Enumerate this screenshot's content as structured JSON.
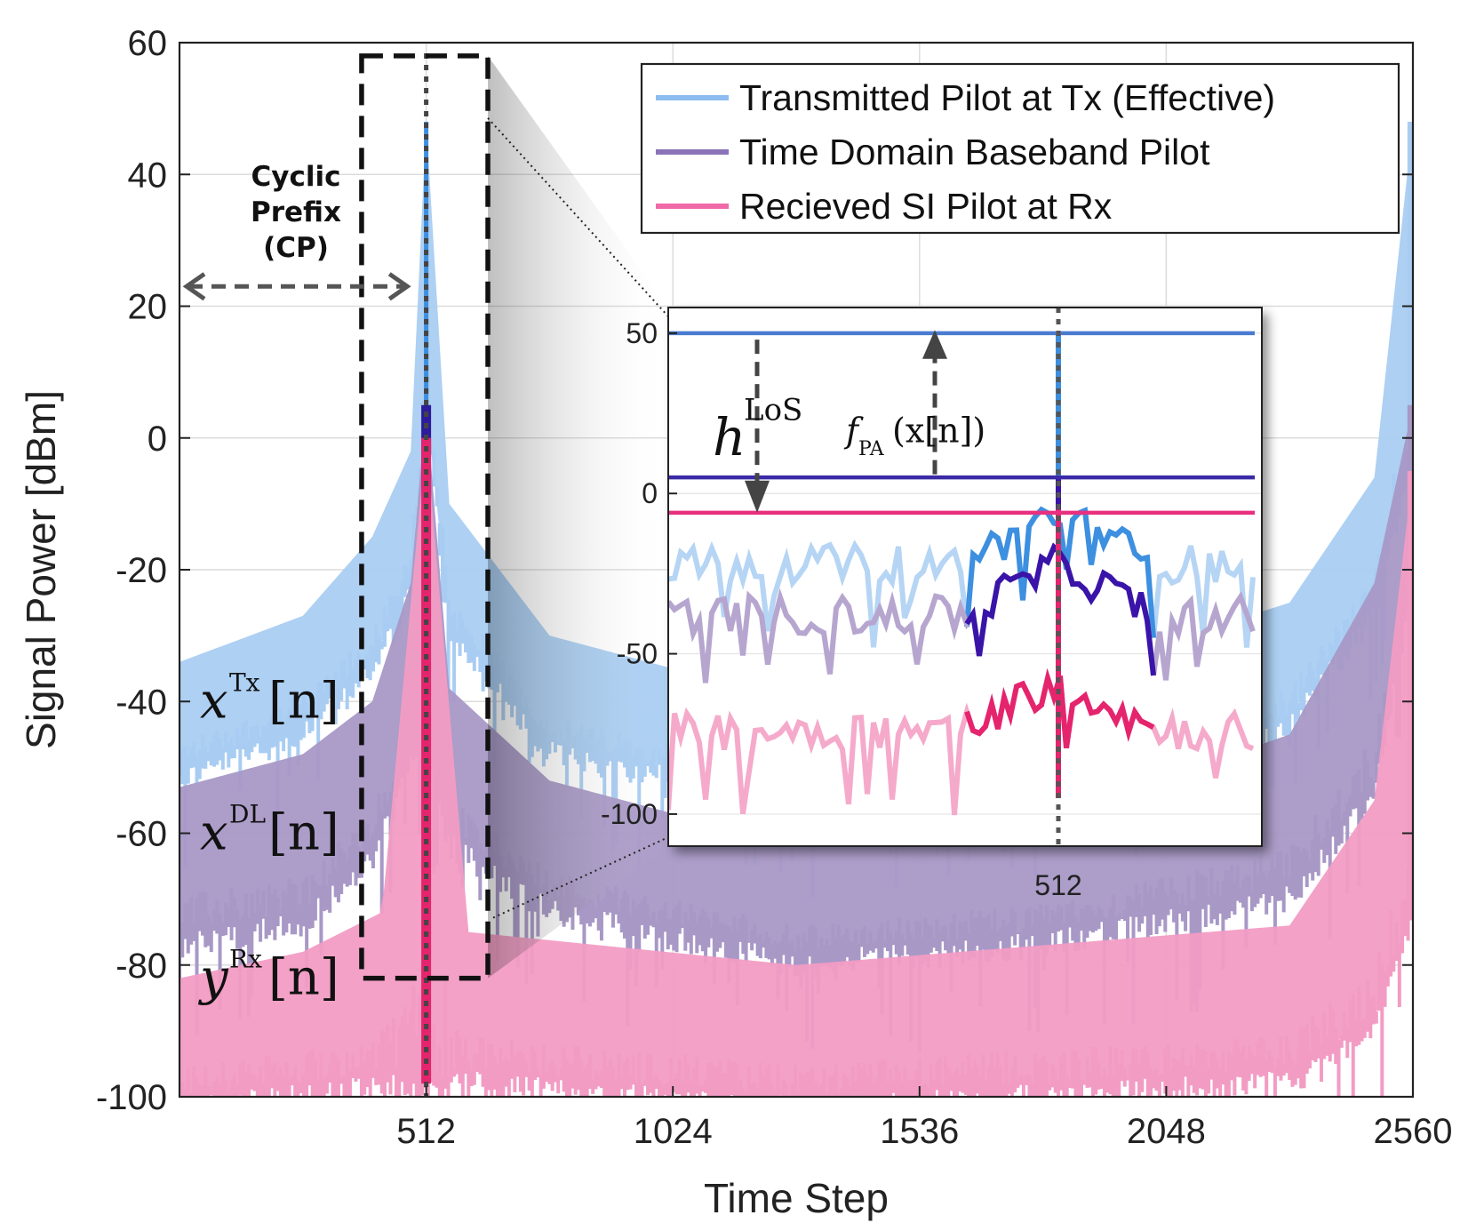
{
  "chart_data": {
    "type": "line",
    "title": "",
    "xlabel": "Time Step",
    "ylabel": "Signal Power [dBm]",
    "xlim": [
      0,
      2560
    ],
    "ylim": [
      -100,
      60
    ],
    "xticks": [
      512,
      1024,
      1536,
      2048,
      2560
    ],
    "xtick_labels": [
      "512",
      "1024",
      "1536",
      "2048",
      "2560"
    ],
    "yticks": [
      60,
      40,
      20,
      0,
      -20,
      -40,
      -60,
      -80,
      -100
    ],
    "ytick_labels": [
      "60",
      "40",
      "20",
      "0",
      "-20",
      "-40",
      "-60",
      "-80",
      "-100"
    ],
    "grid": true,
    "legend_position": "top-right",
    "series": [
      {
        "name": "Transmitted Pilot at Tx (Effective)",
        "color": "#a9cdf2",
        "peak_color": "#3d8fe0",
        "envelope": [
          {
            "x": 0,
            "lo": -50,
            "hi": -34
          },
          {
            "x": 256,
            "lo": -43,
            "hi": -27
          },
          {
            "x": 400,
            "lo": -34,
            "hi": -15
          },
          {
            "x": 480,
            "lo": -22,
            "hi": -2
          },
          {
            "x": 512,
            "lo": 5,
            "hi": 48
          },
          {
            "x": 560,
            "lo": -28,
            "hi": -10
          },
          {
            "x": 768,
            "lo": -46,
            "hi": -30
          },
          {
            "x": 1280,
            "lo": -54,
            "hi": -40
          },
          {
            "x": 1792,
            "lo": -51,
            "hi": -37
          },
          {
            "x": 2304,
            "lo": -42,
            "hi": -25
          },
          {
            "x": 2480,
            "lo": -25,
            "hi": -6
          },
          {
            "x": 2560,
            "lo": -2,
            "hi": 48
          }
        ]
      },
      {
        "name": "Time Domain Baseband Pilot",
        "color": "#a898c6",
        "peak_color": "#2e1a9c",
        "envelope": [
          {
            "x": 0,
            "lo": -75,
            "hi": -53
          },
          {
            "x": 256,
            "lo": -72,
            "hi": -48
          },
          {
            "x": 400,
            "lo": -62,
            "hi": -40
          },
          {
            "x": 480,
            "lo": -48,
            "hi": -22
          },
          {
            "x": 512,
            "lo": -46,
            "hi": 5
          },
          {
            "x": 560,
            "lo": -60,
            "hi": -38
          },
          {
            "x": 768,
            "lo": -70,
            "hi": -52
          },
          {
            "x": 1280,
            "lo": -78,
            "hi": -62
          },
          {
            "x": 1792,
            "lo": -75,
            "hi": -58
          },
          {
            "x": 2304,
            "lo": -68,
            "hi": -45
          },
          {
            "x": 2480,
            "lo": -52,
            "hi": -22
          },
          {
            "x": 2560,
            "lo": -20,
            "hi": 5
          }
        ]
      },
      {
        "name": "Recieved SI Pilot at Rx",
        "color": "#f29cc4",
        "peak_color": "#e5246e",
        "envelope": [
          {
            "x": 0,
            "lo": -100,
            "hi": -82
          },
          {
            "x": 256,
            "lo": -98,
            "hi": -78
          },
          {
            "x": 420,
            "lo": -96,
            "hi": -72
          },
          {
            "x": 512,
            "lo": -98,
            "hi": 0
          },
          {
            "x": 600,
            "lo": -96,
            "hi": -75
          },
          {
            "x": 1280,
            "lo": -100,
            "hi": -80
          },
          {
            "x": 2304,
            "lo": -96,
            "hi": -74
          },
          {
            "x": 2480,
            "lo": -88,
            "hi": -55
          },
          {
            "x": 2560,
            "lo": -72,
            "hi": -5
          }
        ]
      }
    ],
    "annotations": {
      "cp_label": [
        "Cyclic",
        "Prefix",
        "(CP)"
      ],
      "cp_arrow": {
        "x_from": 0,
        "x_to": 480,
        "y": 23
      },
      "cp_box": {
        "x_from": 378,
        "x_to": 640,
        "y_from": -82,
        "y_to": 58
      },
      "peak_marker_x": 512,
      "trace_labels": [
        {
          "base": "x",
          "sup": "Tx",
          "arg": "[n]",
          "y": -40
        },
        {
          "base": "x",
          "sup": "DL",
          "arg": "[n]",
          "y": -60
        },
        {
          "base": "y",
          "sup": "Rx",
          "arg": "[n]",
          "y": -82
        }
      ]
    },
    "inset": {
      "ylim": [
        -110,
        58
      ],
      "yticks": [
        50,
        0,
        -50,
        -100
      ],
      "ytick_labels": [
        "50",
        "0",
        "-50",
        "-100"
      ],
      "xtick_label": "512",
      "level_lines": [
        {
          "series": "Transmitted Pilot at Tx (Effective)",
          "y": 50,
          "color": "#4a7bd0"
        },
        {
          "series": "Time Domain Baseband Pilot",
          "y": 5,
          "color": "#3a2aa6"
        },
        {
          "series": "Recieved SI Pilot at Rx",
          "y": -6,
          "color": "#e8307f"
        }
      ],
      "noise_levels": [
        {
          "series": "Transmitted Pilot at Tx (Effective)",
          "mean": -22,
          "peak": 50
        },
        {
          "series": "Time Domain Baseband Pilot",
          "mean": -38,
          "peak": 5
        },
        {
          "series": "Recieved SI Pilot at Rx",
          "mean": -74,
          "peak": -5
        }
      ],
      "h_label": {
        "base": "h",
        "sup": "LoS"
      },
      "fpa_label": {
        "base": "f",
        "sub": "PA",
        "arg": "(x[n])"
      }
    }
  }
}
